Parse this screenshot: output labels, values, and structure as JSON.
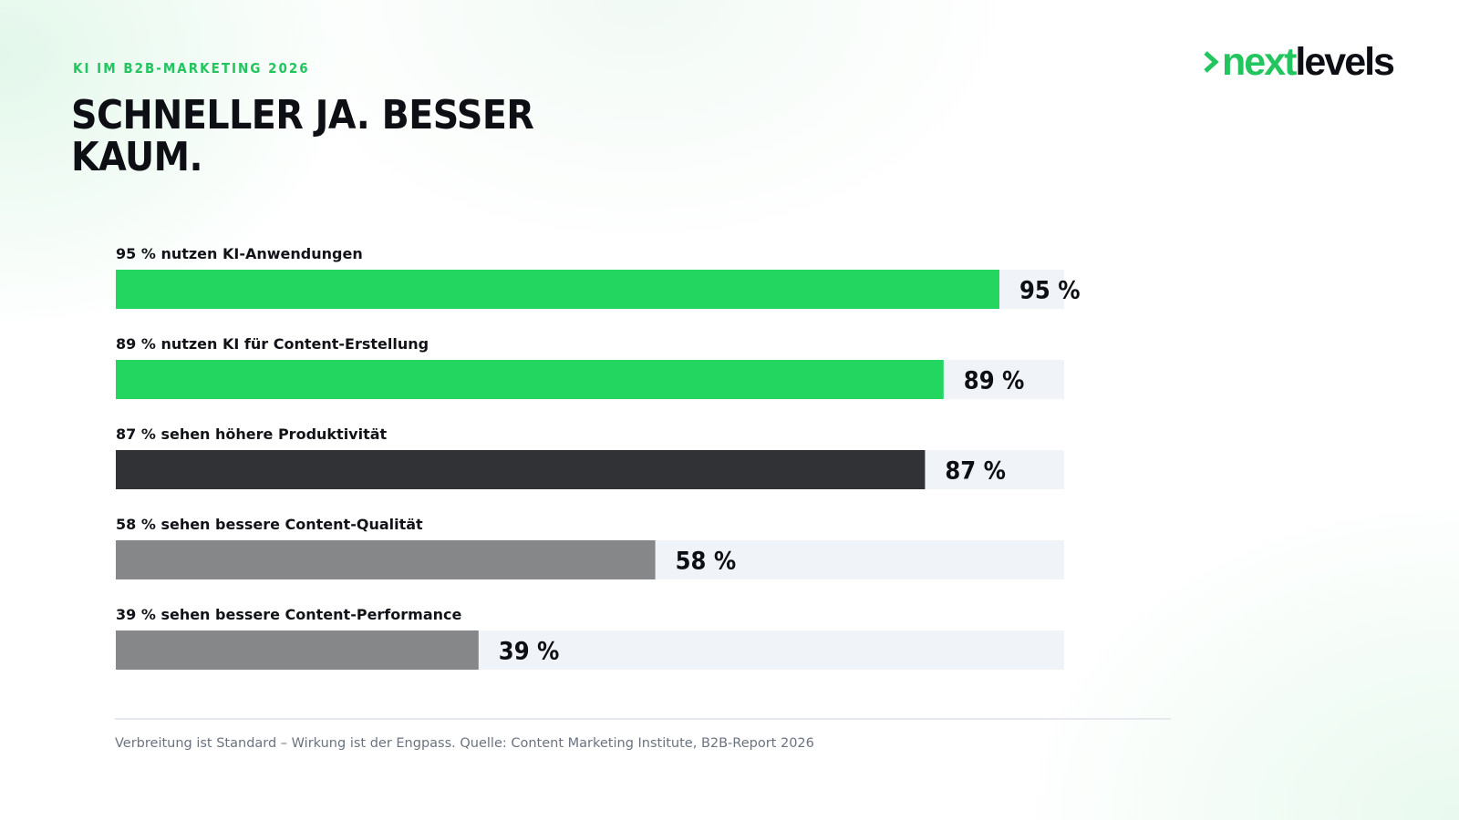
{
  "header": {
    "eyebrow": "KI IM B2B-MARKETING 2026",
    "title": "SCHNELLER JA. BESSER KAUM."
  },
  "logo": {
    "icon": "chevron-right-icon",
    "part1": "next",
    "part2": "levels"
  },
  "colors": {
    "accent": "#22d660",
    "dark": "#313235",
    "gray": "#858789",
    "track": "#f0f3f8"
  },
  "chart_data": {
    "type": "bar",
    "orientation": "horizontal",
    "categories": [
      "95 % nutzen KI-Anwendungen",
      "89 % nutzen KI für Content-Erstellung",
      "87 % sehen höhere Produktivität",
      "58 % sehen bessere Content-Qualität",
      "39 % sehen bessere Content-Performance"
    ],
    "values": [
      95,
      89,
      87,
      58,
      39
    ],
    "value_labels": [
      "95 %",
      "89 %",
      "87 %",
      "58 %",
      "39 %"
    ],
    "bar_colors": [
      "#22d660",
      "#22d660",
      "#313235",
      "#858789",
      "#858789"
    ],
    "xlim": [
      0,
      100
    ],
    "grid": false,
    "legend": "none"
  },
  "footnote": "Verbreitung ist Standard – Wirkung ist der Engpass. Quelle: Content Marketing Institute, B2B-Report 2026"
}
